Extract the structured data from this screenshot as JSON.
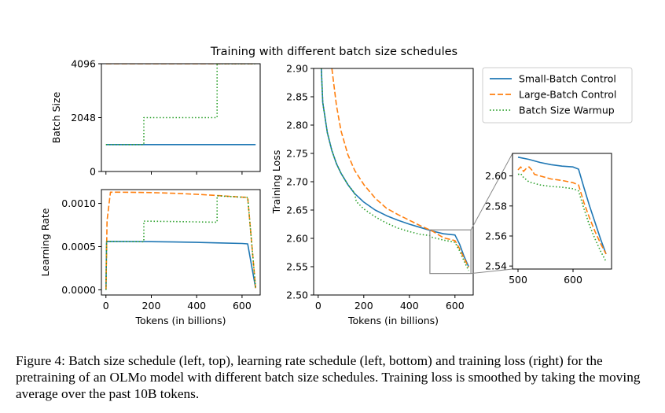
{
  "figure": {
    "title": "Training with different batch size schedules",
    "caption": "Figure 4: Batch size schedule (left, top), learning rate schedule (left, bottom) and training loss (right) for the pretraining of an OLMo model with different batch size schedules. Training loss is smoothed by taking the moving average over the past 10B tokens."
  },
  "colors": {
    "small": "#1f77b4",
    "large": "#ff7f0e",
    "warmup": "#2ca02c",
    "inset_box": "#888888"
  },
  "chart_data": [
    {
      "id": "batch",
      "type": "line",
      "ylabel": "Batch Size",
      "xlim": [
        -20,
        680
      ],
      "ylim": [
        0,
        4096
      ],
      "yticks": [
        0,
        2048,
        4096
      ],
      "ytick_labels": [
        "0",
        "2048",
        "4096"
      ],
      "xticks": [
        0,
        200,
        400,
        600
      ],
      "xtick_labels_shown": false,
      "series": [
        {
          "key": "small",
          "style": "solid",
          "x": [
            0,
            660
          ],
          "y": [
            1024,
            1024
          ]
        },
        {
          "key": "large",
          "style": "dashed",
          "x": [
            0,
            660
          ],
          "y": [
            4096,
            4096
          ]
        },
        {
          "key": "warmup",
          "style": "dotted",
          "x": [
            0,
            167,
            167,
            490,
            490,
            660
          ],
          "y": [
            1024,
            1024,
            2048,
            2048,
            4096,
            4096
          ]
        }
      ]
    },
    {
      "id": "lr",
      "type": "line",
      "ylabel": "Learning Rate",
      "xlabel": "Tokens (in billions)",
      "xlim": [
        -20,
        680
      ],
      "ylim": [
        -6e-05,
        0.00116
      ],
      "yticks": [
        0,
        0.0005,
        0.001
      ],
      "ytick_labels": [
        "0.0000",
        "0.0005",
        "0.0010"
      ],
      "xticks": [
        0,
        200,
        400,
        600
      ],
      "xtick_labels": [
        "0",
        "200",
        "400",
        "600"
      ],
      "series": [
        {
          "key": "small",
          "style": "solid",
          "x": [
            0,
            3,
            20,
            100,
            200,
            300,
            400,
            500,
            600,
            625,
            660
          ],
          "y": [
            0,
            0.00056,
            0.00056,
            0.000559,
            0.000557,
            0.000554,
            0.000549,
            0.000543,
            0.000536,
            0.000532,
            2e-05
          ]
        },
        {
          "key": "large",
          "style": "dashed",
          "x": [
            0,
            5,
            20,
            100,
            200,
            300,
            400,
            500,
            600,
            625,
            660
          ],
          "y": [
            0,
            0.0008,
            0.00113,
            0.001129,
            0.001125,
            0.001117,
            0.001105,
            0.00109,
            0.001073,
            0.00107,
            2e-05
          ]
        },
        {
          "key": "warmup",
          "style": "dotted",
          "x": [
            0,
            3,
            20,
            167,
            167,
            300,
            490,
            490,
            600,
            625,
            660
          ],
          "y": [
            0,
            0.00056,
            0.00056,
            0.000556,
            0.000795,
            0.00079,
            0.000782,
            0.001088,
            0.001072,
            0.00107,
            2e-05
          ]
        }
      ]
    },
    {
      "id": "loss",
      "type": "line",
      "ylabel": "Training Loss",
      "xlabel": "Tokens (in billions)",
      "xlim": [
        -20,
        680
      ],
      "ylim": [
        2.5,
        2.9
      ],
      "yticks": [
        2.5,
        2.55,
        2.6,
        2.65,
        2.7,
        2.75,
        2.8,
        2.85,
        2.9
      ],
      "ytick_labels": [
        "2.50",
        "2.55",
        "2.60",
        "2.65",
        "2.70",
        "2.75",
        "2.80",
        "2.85",
        "2.90"
      ],
      "xticks": [
        0,
        200,
        400,
        600
      ],
      "xtick_labels": [
        "0",
        "200",
        "400",
        "600"
      ],
      "legend": {
        "position": "top-right",
        "entries": [
          "Small-Batch Control",
          "Large-Batch Control",
          "Batch Size Warmup"
        ]
      },
      "series": [
        {
          "key": "small",
          "name": "Small-Batch Control",
          "style": "solid",
          "x": [
            5,
            20,
            40,
            60,
            80,
            100,
            130,
            160,
            200,
            250,
            300,
            350,
            400,
            450,
            500,
            550,
            600,
            620,
            640,
            660
          ],
          "y": [
            2.98,
            2.84,
            2.787,
            2.755,
            2.732,
            2.715,
            2.695,
            2.679,
            2.664,
            2.65,
            2.64,
            2.632,
            2.625,
            2.619,
            2.613,
            2.608,
            2.606,
            2.59,
            2.568,
            2.55
          ]
        },
        {
          "key": "large",
          "name": "Large-Batch Control",
          "style": "dashed",
          "x": [
            60,
            80,
            100,
            130,
            160,
            200,
            250,
            300,
            350,
            400,
            450,
            500,
            550,
            600,
            620,
            640,
            660
          ],
          "y": [
            2.9,
            2.835,
            2.79,
            2.748,
            2.72,
            2.695,
            2.671,
            2.653,
            2.642,
            2.632,
            2.622,
            2.613,
            2.601,
            2.596,
            2.582,
            2.565,
            2.549
          ]
        },
        {
          "key": "warmup",
          "name": "Batch Size Warmup",
          "style": "dotted",
          "x": [
            5,
            20,
            40,
            60,
            80,
            100,
            130,
            160,
            167,
            200,
            250,
            300,
            350,
            400,
            450,
            490,
            500,
            550,
            600,
            620,
            640,
            660
          ],
          "y": [
            2.98,
            2.84,
            2.787,
            2.755,
            2.732,
            2.715,
            2.695,
            2.68,
            2.665,
            2.652,
            2.638,
            2.627,
            2.618,
            2.612,
            2.607,
            2.605,
            2.602,
            2.597,
            2.593,
            2.578,
            2.56,
            2.543
          ]
        }
      ]
    },
    {
      "id": "inset",
      "type": "line",
      "xlim": [
        490,
        670
      ],
      "ylim": [
        2.538,
        2.615
      ],
      "yticks": [
        2.54,
        2.56,
        2.58,
        2.6
      ],
      "ytick_labels": [
        "2.54",
        "2.56",
        "2.58",
        "2.60"
      ],
      "xticks": [
        500,
        600
      ],
      "xtick_labels": [
        "500",
        "600"
      ],
      "zoom_region": {
        "x": [
          490,
          670
        ],
        "y": [
          2.538,
          2.615
        ]
      },
      "series": [
        {
          "key": "small",
          "style": "solid",
          "x": [
            500,
            520,
            540,
            560,
            580,
            600,
            610,
            620,
            630,
            640,
            650,
            660
          ],
          "y": [
            2.6125,
            2.611,
            2.609,
            2.6075,
            2.6065,
            2.606,
            2.6045,
            2.592,
            2.58,
            2.569,
            2.558,
            2.548
          ]
        },
        {
          "key": "large",
          "style": "dashed",
          "x": [
            500,
            505,
            510,
            515,
            520,
            525,
            530,
            540,
            560,
            580,
            600,
            610,
            620,
            630,
            640,
            650,
            660
          ],
          "y": [
            2.604,
            2.606,
            2.603,
            2.605,
            2.606,
            2.604,
            2.601,
            2.6,
            2.598,
            2.597,
            2.5955,
            2.594,
            2.582,
            2.572,
            2.563,
            2.555,
            2.548
          ]
        },
        {
          "key": "warmup",
          "style": "dotted",
          "x": [
            500,
            505,
            510,
            520,
            530,
            540,
            560,
            580,
            600,
            610,
            620,
            630,
            640,
            650,
            660
          ],
          "y": [
            2.601,
            2.6015,
            2.599,
            2.596,
            2.595,
            2.594,
            2.593,
            2.5925,
            2.5915,
            2.59,
            2.578,
            2.567,
            2.558,
            2.55,
            2.543
          ]
        }
      ]
    }
  ]
}
